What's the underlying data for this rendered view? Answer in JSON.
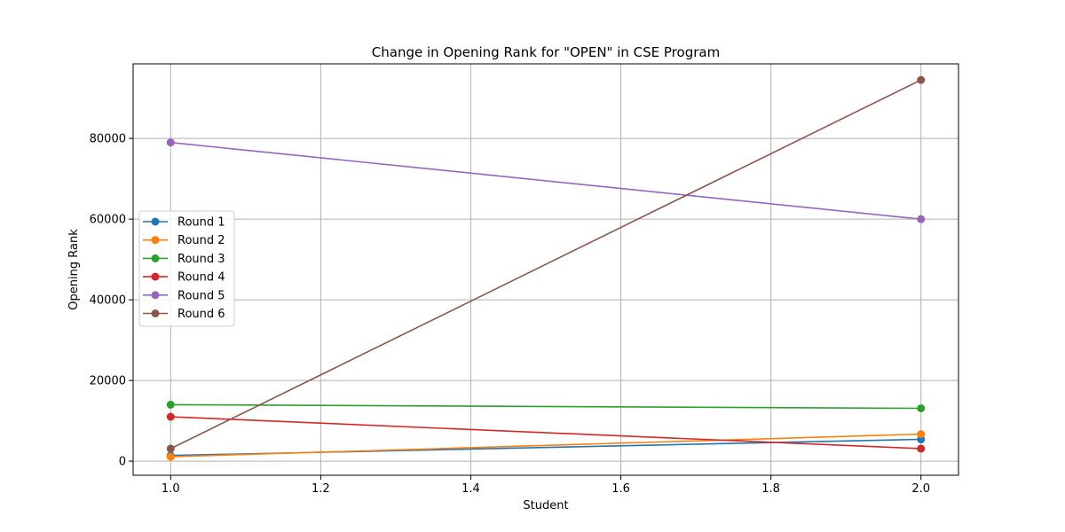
{
  "chart_data": {
    "type": "line",
    "title": "Change in Opening Rank for \"OPEN\" in CSE Program",
    "xlabel": "Student",
    "ylabel": "Opening Rank",
    "xlim": [
      0.95,
      2.05
    ],
    "ylim": [
      -3500,
      98500
    ],
    "xticks": [
      1.0,
      1.2,
      1.4,
      1.6,
      1.8,
      2.0
    ],
    "xtick_labels": [
      "1.0",
      "1.2",
      "1.4",
      "1.6",
      "1.8",
      "2.0"
    ],
    "yticks": [
      0,
      20000,
      40000,
      60000,
      80000
    ],
    "ytick_labels": [
      "0",
      "20000",
      "40000",
      "60000",
      "80000"
    ],
    "grid": true,
    "legend_position": "center-left",
    "x": [
      1.0,
      2.0
    ],
    "series": [
      {
        "name": "Round 1",
        "color": "#1f77b4",
        "values": [
          1400,
          5400
        ]
      },
      {
        "name": "Round 2",
        "color": "#ff7f0e",
        "values": [
          1100,
          6700
        ]
      },
      {
        "name": "Round 3",
        "color": "#2ca02c",
        "values": [
          14000,
          13100
        ]
      },
      {
        "name": "Round 4",
        "color": "#d62728",
        "values": [
          11000,
          3100
        ]
      },
      {
        "name": "Round 5",
        "color": "#9467bd",
        "values": [
          79000,
          60000
        ]
      },
      {
        "name": "Round 6",
        "color": "#8c564b",
        "values": [
          3100,
          94500
        ]
      }
    ]
  }
}
